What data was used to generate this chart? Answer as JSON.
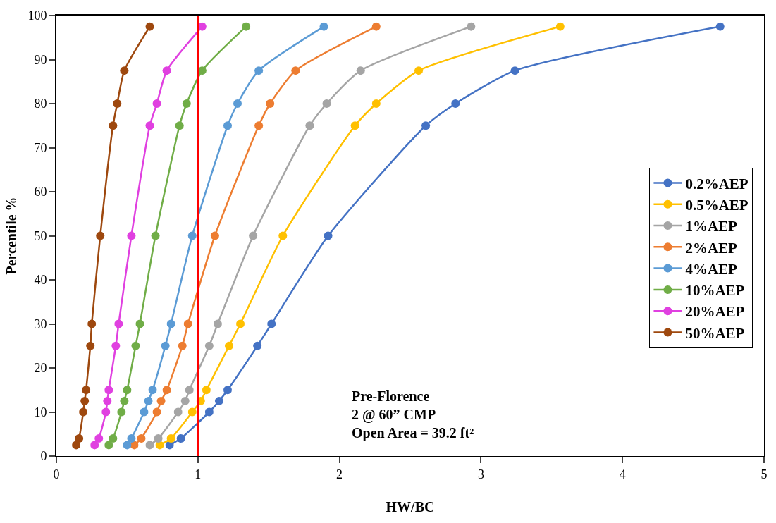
{
  "chart_data": {
    "type": "line",
    "xlabel": "HW/BC",
    "ylabel": "Percentile %",
    "xlim": [
      0,
      5
    ],
    "xticks": [
      0,
      1,
      2,
      3,
      4,
      5
    ],
    "ylim": [
      0,
      100
    ],
    "yticks": [
      0,
      10,
      20,
      30,
      40,
      50,
      60,
      70,
      80,
      90,
      100
    ],
    "legend": "right",
    "marker": "circle",
    "line_style": "solid",
    "series": [
      {
        "name": "0.2%AEP",
        "color": "#4472c4",
        "x": [
          0.8,
          0.88,
          1.08,
          1.15,
          1.21,
          1.42,
          1.52,
          1.92,
          2.61,
          2.82,
          3.24,
          4.69
        ],
        "values": [
          2.5,
          4,
          10,
          12.5,
          15,
          25,
          30,
          50,
          75,
          80,
          87.5,
          97.5
        ]
      },
      {
        "name": "0.5%AEP",
        "color": "#ffc000",
        "x": [
          0.73,
          0.81,
          0.96,
          1.02,
          1.06,
          1.22,
          1.3,
          1.6,
          2.11,
          2.26,
          2.56,
          3.56
        ],
        "values": [
          2.5,
          4,
          10,
          12.5,
          15,
          25,
          30,
          50,
          75,
          80,
          87.5,
          97.5
        ]
      },
      {
        "name": "1%AEP",
        "color": "#a5a5a5",
        "x": [
          0.66,
          0.72,
          0.86,
          0.91,
          0.94,
          1.08,
          1.14,
          1.39,
          1.79,
          1.91,
          2.15,
          2.93
        ],
        "values": [
          2.5,
          4,
          10,
          12.5,
          15,
          25,
          30,
          50,
          75,
          80,
          87.5,
          97.5
        ]
      },
      {
        "name": "2%AEP",
        "color": "#ed7d31",
        "x": [
          0.55,
          0.6,
          0.71,
          0.74,
          0.78,
          0.89,
          0.93,
          1.12,
          1.43,
          1.51,
          1.69,
          2.26
        ],
        "values": [
          2.5,
          4,
          10,
          12.5,
          15,
          25,
          30,
          50,
          75,
          80,
          87.5,
          97.5
        ]
      },
      {
        "name": "4%AEP",
        "color": "#5b9bd5",
        "x": [
          0.5,
          0.53,
          0.62,
          0.65,
          0.68,
          0.77,
          0.81,
          0.96,
          1.21,
          1.28,
          1.43,
          1.89
        ],
        "values": [
          2.5,
          4,
          10,
          12.5,
          15,
          25,
          30,
          50,
          75,
          80,
          87.5,
          97.5
        ]
      },
      {
        "name": "10%AEP",
        "color": "#70ad47",
        "x": [
          0.37,
          0.4,
          0.46,
          0.48,
          0.5,
          0.56,
          0.59,
          0.7,
          0.87,
          0.92,
          1.03,
          1.34
        ],
        "values": [
          2.5,
          4,
          10,
          12.5,
          15,
          25,
          30,
          50,
          75,
          80,
          87.5,
          97.5
        ]
      },
      {
        "name": "20%AEP",
        "color": "#e040e0",
        "x": [
          0.27,
          0.3,
          0.35,
          0.36,
          0.37,
          0.42,
          0.44,
          0.53,
          0.66,
          0.71,
          0.78,
          1.03
        ],
        "values": [
          2.5,
          4,
          10,
          12.5,
          15,
          25,
          30,
          50,
          75,
          80,
          87.5,
          97.5
        ]
      },
      {
        "name": "50%AEP",
        "color": "#9e480e",
        "x": [
          0.14,
          0.16,
          0.19,
          0.2,
          0.21,
          0.24,
          0.25,
          0.31,
          0.4,
          0.43,
          0.48,
          0.66
        ],
        "values": [
          2.5,
          4,
          10,
          12.5,
          15,
          25,
          30,
          50,
          75,
          80,
          87.5,
          97.5
        ]
      }
    ],
    "ref_lines": [
      {
        "axis": "x",
        "value": 1,
        "color": "#ff0000",
        "line_style": "solid"
      }
    ],
    "annotations": [
      "Pre-Florence\n2 @ 60” CMP\nOpen Area = 39.2 ft²"
    ]
  }
}
